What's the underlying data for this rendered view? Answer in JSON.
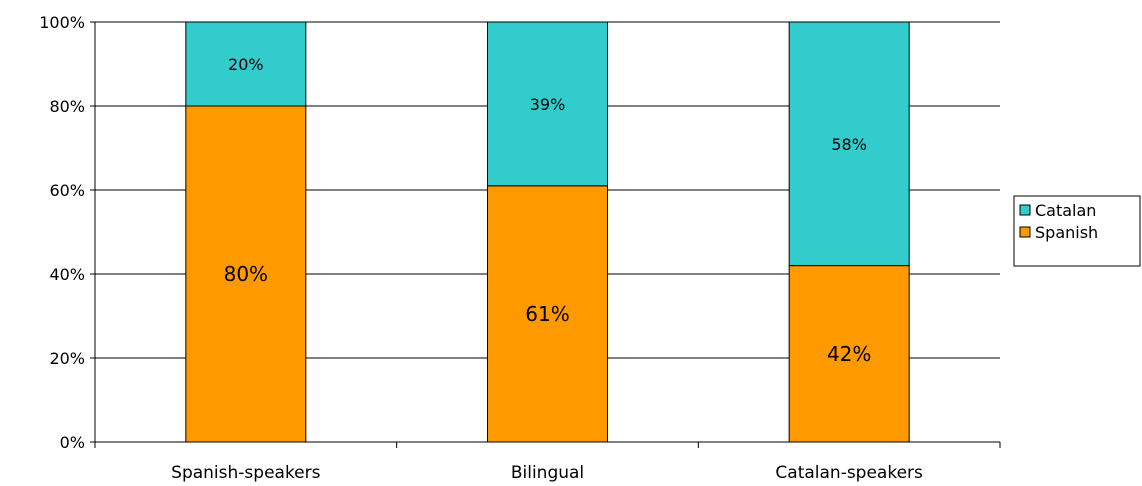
{
  "chart_data": {
    "type": "bar",
    "stacked": true,
    "percent": true,
    "categories": [
      "Spanish-speakers",
      "Bilingual",
      "Catalan-speakers"
    ],
    "series": [
      {
        "name": "Spanish",
        "values": [
          80,
          61,
          42
        ],
        "color": "#ff9900"
      },
      {
        "name": "Catalan",
        "values": [
          20,
          39,
          58
        ],
        "color": "#33cccc"
      }
    ],
    "data_labels": {
      "Spanish": [
        "80%",
        "61%",
        "42%"
      ],
      "Catalan": [
        "20%",
        "39%",
        "58%"
      ]
    },
    "ylim": [
      0,
      100
    ],
    "yticks": [
      0,
      20,
      40,
      60,
      80,
      100
    ],
    "ytick_labels": [
      "0%",
      "20%",
      "40%",
      "60%",
      "80%",
      "100%"
    ],
    "grid": true,
    "legend": {
      "position": "right",
      "entries": [
        "Catalan",
        "Spanish"
      ]
    },
    "title": "",
    "xlabel": "",
    "ylabel": ""
  }
}
